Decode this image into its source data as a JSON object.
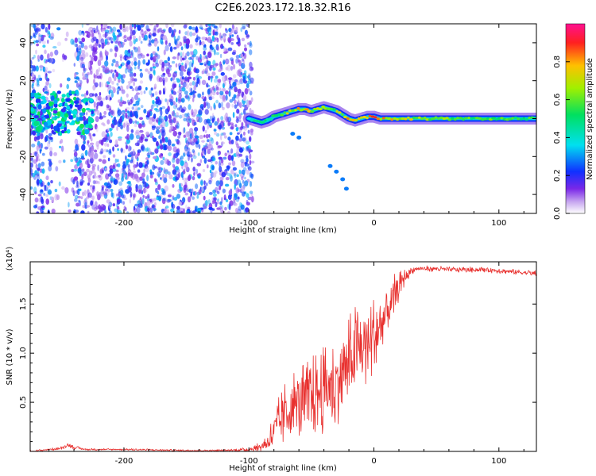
{
  "figure_title": "C2E6.2023.172.18.32.R16",
  "colorbar_label": "Normalized spectral amplitude",
  "colors": {
    "snr_line": "#e8302e",
    "ridge_core": "#ff2020",
    "ridge_mid": "#00e070",
    "ridge_edge": "#1030ff",
    "speckle": "#7a28e8"
  },
  "chart_data": [
    {
      "type": "heatmap",
      "title": "C2E6.2023.172.18.32.R16",
      "xlabel": "Height of straight line (km)",
      "ylabel": "Frequency (Hz)",
      "xlim": [
        -275,
        130
      ],
      "ylim": [
        -50,
        50
      ],
      "x_ticks": [
        -200,
        -100,
        0,
        100
      ],
      "y_ticks": [
        -40,
        -20,
        0,
        20,
        40
      ],
      "x_tick_labels": [
        "-200",
        "-100",
        "0",
        "100"
      ],
      "y_tick_labels": [
        "-40",
        "-20",
        "0",
        "20",
        "40"
      ],
      "colorbar": {
        "label": "Normalized spectral amplitude",
        "range": [
          0.0,
          1.0
        ],
        "ticks": [
          0.0,
          0.2,
          0.4,
          0.6,
          0.8
        ],
        "tick_labels": [
          "0.0",
          "0.2",
          "0.4",
          "0.6",
          "0.8"
        ],
        "colormap": "rainbow"
      },
      "ridge": {
        "x": [
          -100,
          -95,
          -90,
          -85,
          -80,
          -75,
          -70,
          -65,
          -60,
          -55,
          -50,
          -45,
          -40,
          -35,
          -30,
          -25,
          -20,
          -15,
          -10,
          -5,
          0,
          5,
          10,
          20,
          40,
          60,
          80,
          100,
          130
        ],
        "frequency": [
          0,
          -1,
          -2,
          -1,
          1,
          2,
          3,
          4,
          5,
          5,
          4,
          5,
          6,
          5,
          4,
          2,
          0,
          -1,
          0,
          1,
          1,
          0,
          0,
          0,
          0,
          0,
          0,
          0,
          0
        ],
        "amplitude": [
          0.4,
          0.5,
          0.5,
          0.55,
          0.6,
          0.65,
          0.7,
          0.75,
          0.8,
          0.8,
          0.75,
          0.8,
          0.75,
          0.7,
          0.7,
          0.8,
          0.85,
          0.9,
          0.85,
          0.9,
          0.9,
          0.85,
          0.8,
          0.75,
          0.7,
          0.65,
          0.65,
          0.6,
          0.6
        ]
      },
      "cluster": {
        "x_range": [
          -275,
          -225
        ],
        "frequency_range": [
          -8,
          14
        ],
        "amplitude_max": 0.55
      },
      "scatter_region": {
        "x_range": [
          -275,
          -97
        ],
        "frequency_range": [
          -50,
          50
        ],
        "amplitude_max": 0.3,
        "gap_x_range": [
          -257,
          -239
        ]
      },
      "secondary_branch": {
        "x": [
          -65,
          -60,
          -35,
          -30,
          -25,
          -22
        ],
        "frequency": [
          -8,
          -10,
          -25,
          -28,
          -32,
          -37
        ]
      }
    },
    {
      "type": "line",
      "xlabel": "Height of straight line (km)",
      "ylabel": "SNR (10 * v/v)",
      "y_multiplier": "(x10⁴)",
      "xlim": [
        -275,
        130
      ],
      "ylim": [
        0,
        1.93
      ],
      "x_ticks": [
        -200,
        -100,
        0,
        100
      ],
      "y_ticks": [
        0.5,
        1.0,
        1.5
      ],
      "x_tick_labels": [
        "-200",
        "-100",
        "0",
        "100"
      ],
      "y_tick_labels": [
        "0.5",
        "1.0",
        "1.5"
      ],
      "grid": false,
      "series": [
        {
          "x": [
            -275,
            -260,
            -250,
            -245,
            -240,
            -230,
            -200,
            -150,
            -120,
            -100,
            -90,
            -85,
            -80,
            -75,
            -70,
            -65,
            -60,
            -55,
            -50,
            -45,
            -40,
            -35,
            -30,
            -25,
            -20,
            -15,
            -10,
            -5,
            0,
            5,
            10,
            15,
            20,
            25,
            30,
            35,
            40,
            50,
            60,
            70,
            80,
            90,
            100,
            110,
            120,
            130
          ],
          "y": [
            0.0,
            0.02,
            0.03,
            0.07,
            0.04,
            0.02,
            0.02,
            0.01,
            0.01,
            0.02,
            0.05,
            0.1,
            0.2,
            0.3,
            0.4,
            0.45,
            0.5,
            0.5,
            0.55,
            0.6,
            0.62,
            0.65,
            0.7,
            0.8,
            0.9,
            1.0,
            1.05,
            1.1,
            1.15,
            1.25,
            1.4,
            1.55,
            1.68,
            1.78,
            1.84,
            1.86,
            1.86,
            1.86,
            1.85,
            1.85,
            1.85,
            1.85,
            1.84,
            1.83,
            1.82,
            1.81
          ],
          "noise_amplitude": [
            0.01,
            0.01,
            0.02,
            0.02,
            0.02,
            0.01,
            0.01,
            0.01,
            0.01,
            0.02,
            0.05,
            0.1,
            0.22,
            0.3,
            0.35,
            0.38,
            0.4,
            0.4,
            0.42,
            0.45,
            0.45,
            0.45,
            0.45,
            0.45,
            0.5,
            0.5,
            0.45,
            0.45,
            0.45,
            0.4,
            0.35,
            0.25,
            0.15,
            0.08,
            0.04,
            0.03,
            0.03,
            0.03,
            0.03,
            0.03,
            0.03,
            0.03,
            0.03,
            0.03,
            0.03,
            0.03
          ]
        }
      ]
    }
  ]
}
